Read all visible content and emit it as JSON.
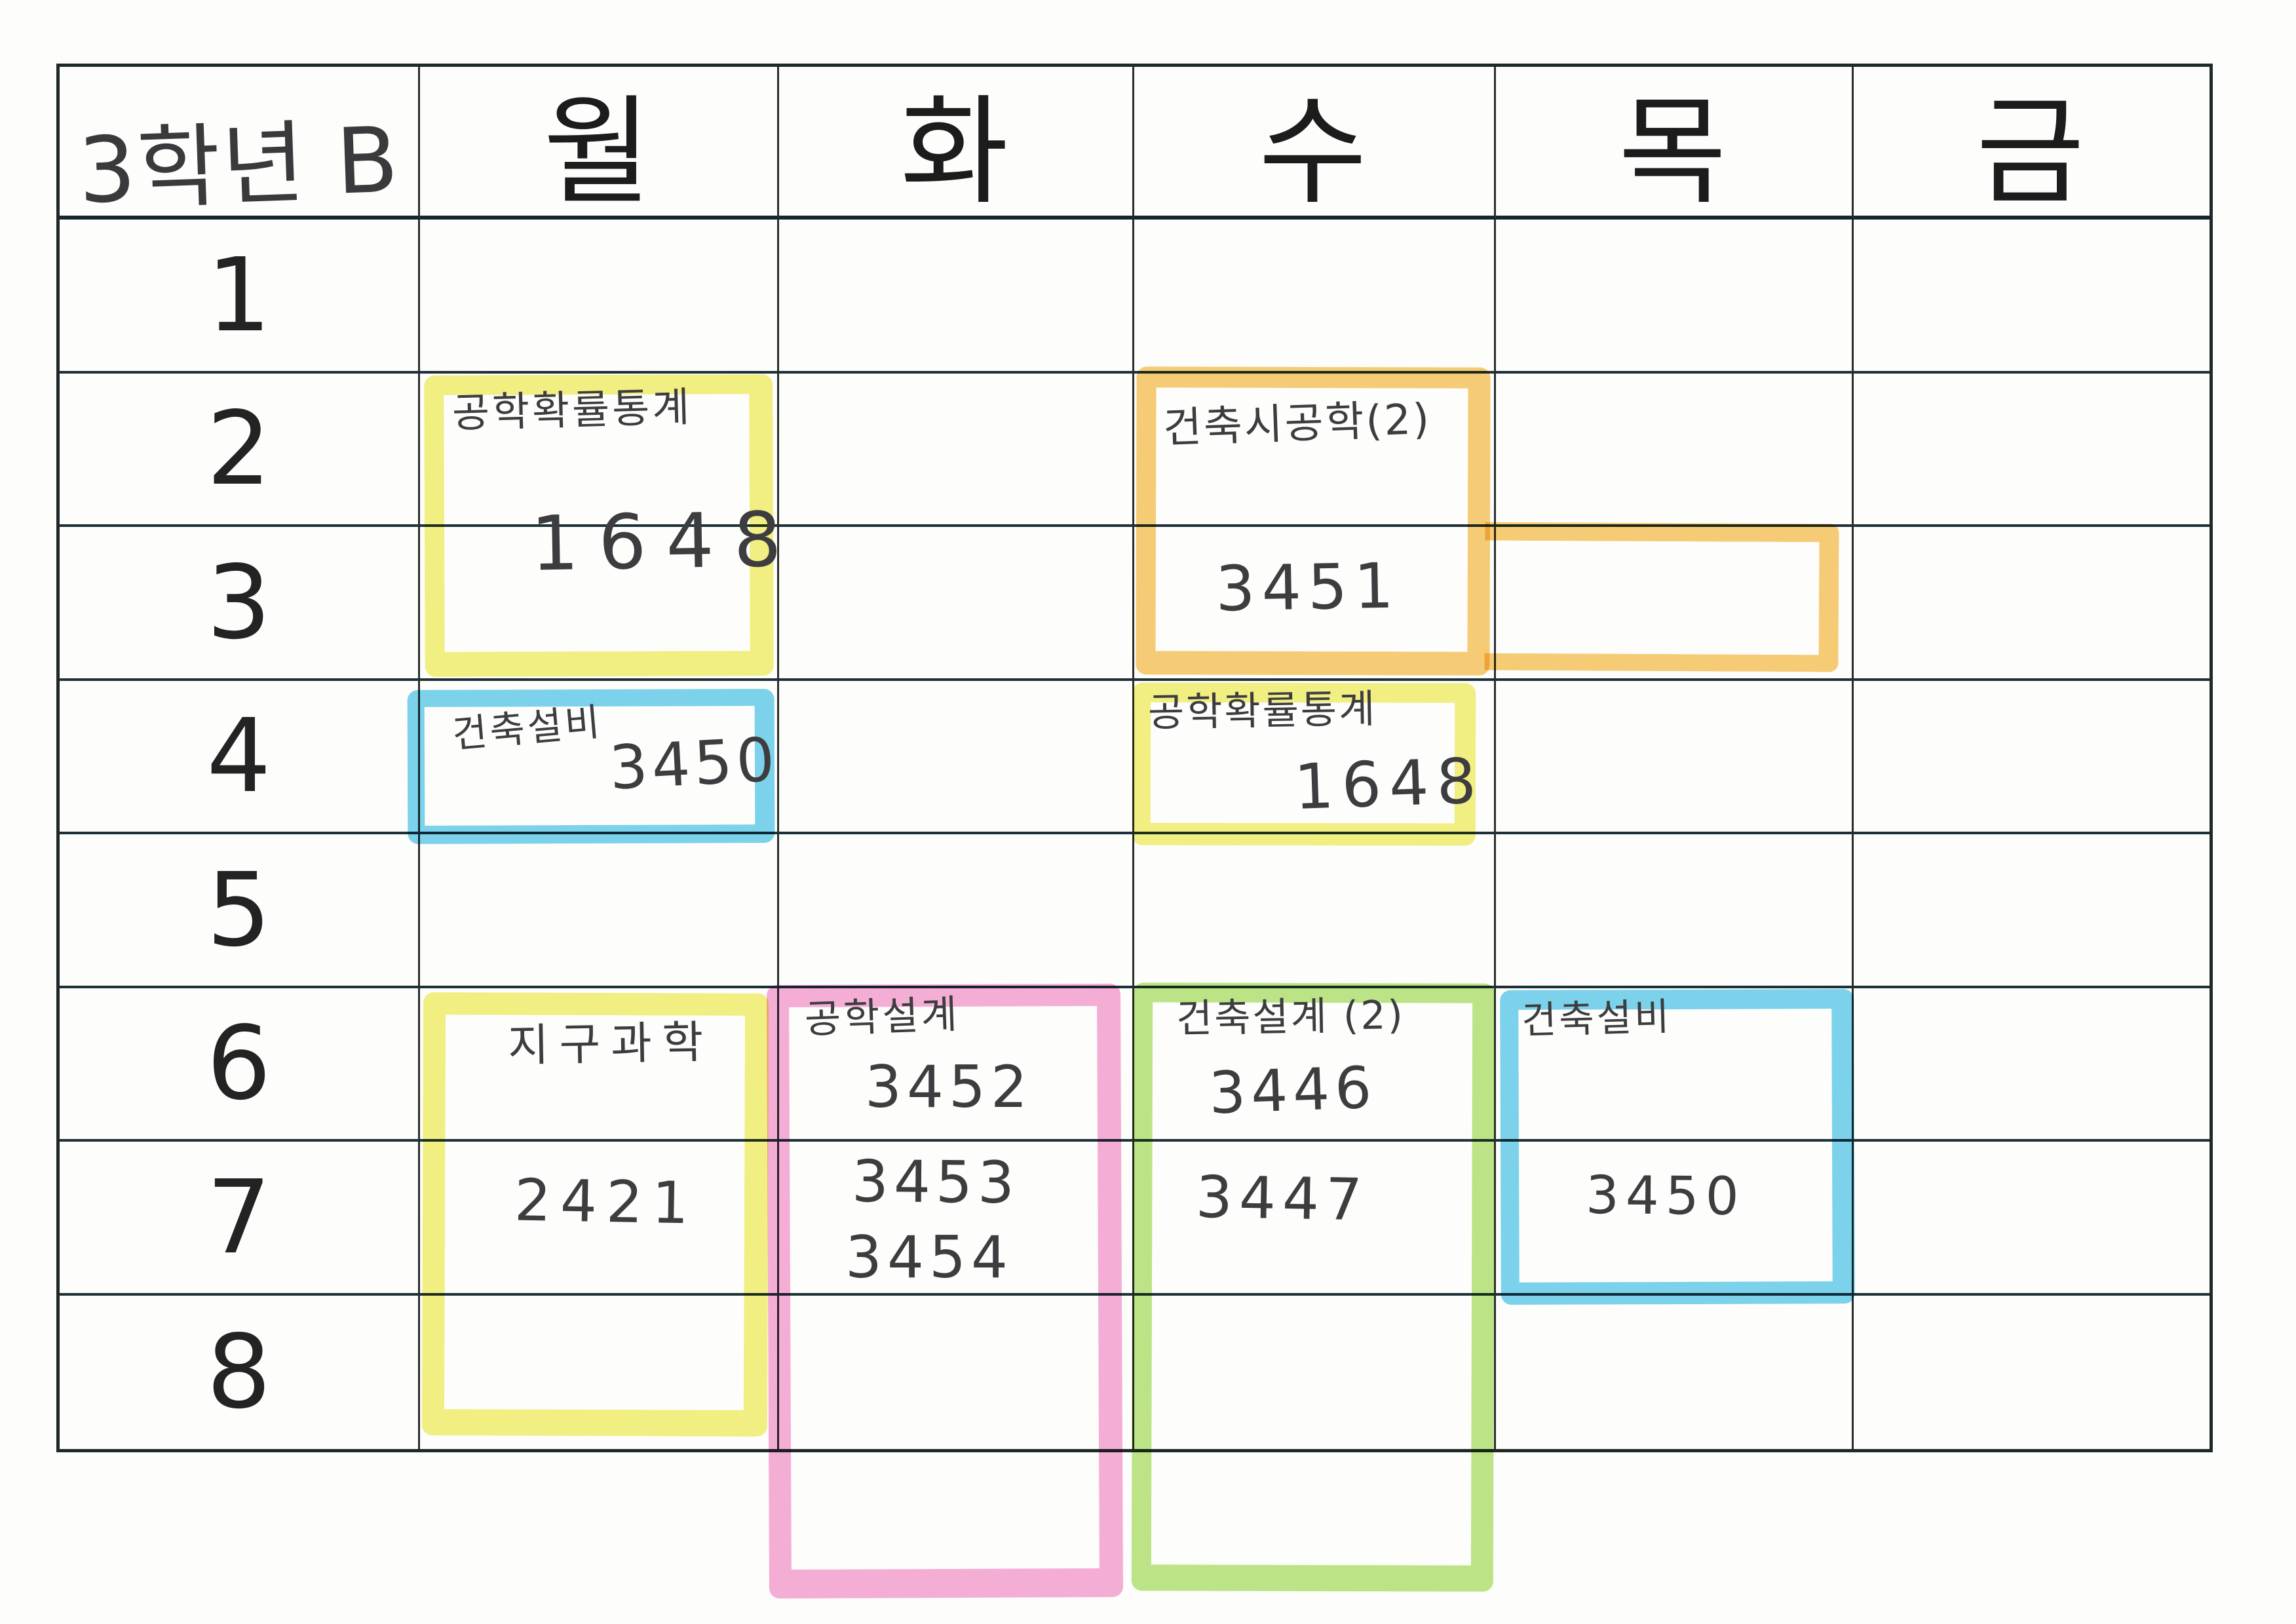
{
  "sheet": {
    "class_label": "3학년 B"
  },
  "days": [
    "월",
    "화",
    "수",
    "목",
    "금"
  ],
  "periods": [
    "1",
    "2",
    "3",
    "4",
    "5",
    "6",
    "7",
    "8"
  ],
  "colors": {
    "yellow": "#f1ee6e",
    "orange": "#f6c55f",
    "blue": "#65cdeb",
    "pink": "#f5a2d3",
    "green": "#b3e274",
    "ink": "#3d3d40"
  },
  "entries": {
    "mon_prob": {
      "day": "월",
      "periods": "2-3",
      "highlight": "yellow",
      "subject": "공학확률통계",
      "code": "1648"
    },
    "wed_sigong": {
      "day": "수",
      "periods": "2-3",
      "highlight": "orange",
      "subject": "건축시공학(2)",
      "code": "3451",
      "extension": "목 3교시"
    },
    "mon_seolbi": {
      "day": "월",
      "periods": "4",
      "highlight": "blue",
      "subject": "건축설비",
      "code": "3450"
    },
    "wed_prob": {
      "day": "수",
      "periods": "4",
      "highlight": "yellow",
      "subject": "공학확률통계",
      "code": "1648"
    },
    "mon_earth": {
      "day": "월",
      "periods": "6-8",
      "highlight": "yellow",
      "subject": "지구과학",
      "code": "2421"
    },
    "tue_design": {
      "day": "화",
      "periods": "6-8",
      "highlight": "pink",
      "subject": "공학설계",
      "codes": [
        "3452",
        "3453",
        "3454"
      ]
    },
    "wed_design": {
      "day": "수",
      "periods": "6-8",
      "highlight": "green",
      "subject": "건축설계 (2)",
      "codes": [
        "3446",
        "3447"
      ]
    },
    "thu_seolbi": {
      "day": "목",
      "periods": "6-7",
      "highlight": "blue",
      "subject": "건축설비",
      "code": "3450"
    }
  }
}
